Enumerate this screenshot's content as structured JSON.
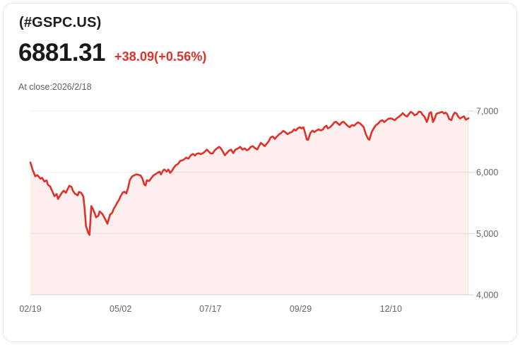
{
  "header": {
    "symbol": "(#GSPC.US)",
    "price": "6881.31",
    "change": "+38.09(+0.56%)",
    "as_of": "At close:2026/2/18"
  },
  "colors": {
    "line_red": "#e1302a",
    "area_fill": "rgba(225,48,42,0.08)",
    "change_red": "#e1302a",
    "grid": "#ececee",
    "axis": "#d2d5da",
    "tick_label": "#63666d"
  },
  "chart_data": {
    "type": "area",
    "series_name": "#GSPC.US daily close",
    "x_range": [
      "02/19",
      "02/18 (next year)"
    ],
    "ylim": [
      4000,
      7000
    ],
    "last_close": 6881.31,
    "y_ticks": [
      {
        "value": 7000,
        "label": "7,000"
      },
      {
        "value": 6000,
        "label": "6,000"
      },
      {
        "value": 5000,
        "label": "5,000"
      },
      {
        "value": 4000,
        "label": "4,000"
      }
    ],
    "x_ticks": [
      {
        "t": 0.0,
        "label": "02/19"
      },
      {
        "t": 0.206,
        "label": "05/02"
      },
      {
        "t": 0.411,
        "label": "07/17"
      },
      {
        "t": 0.617,
        "label": "09/29"
      },
      {
        "t": 0.823,
        "label": "12/10"
      }
    ],
    "legend": "none",
    "grid": "horizontal",
    "points": [
      [
        0.0,
        6160
      ],
      [
        0.005,
        6045
      ],
      [
        0.008,
        5990
      ],
      [
        0.011,
        5935
      ],
      [
        0.016,
        5955
      ],
      [
        0.023,
        5895
      ],
      [
        0.027,
        5910
      ],
      [
        0.032,
        5850
      ],
      [
        0.037,
        5868
      ],
      [
        0.04,
        5795
      ],
      [
        0.045,
        5770
      ],
      [
        0.05,
        5690
      ],
      [
        0.055,
        5610
      ],
      [
        0.06,
        5645
      ],
      [
        0.063,
        5565
      ],
      [
        0.068,
        5625
      ],
      [
        0.073,
        5675
      ],
      [
        0.076,
        5700
      ],
      [
        0.081,
        5665
      ],
      [
        0.085,
        5725
      ],
      [
        0.089,
        5780
      ],
      [
        0.094,
        5760
      ],
      [
        0.097,
        5700
      ],
      [
        0.102,
        5650
      ],
      [
        0.108,
        5622
      ],
      [
        0.111,
        5680
      ],
      [
        0.116,
        5665
      ],
      [
        0.121,
        5605
      ],
      [
        0.124,
        5390
      ],
      [
        0.127,
        5125
      ],
      [
        0.132,
        5012
      ],
      [
        0.135,
        4977
      ],
      [
        0.139,
        5448
      ],
      [
        0.142,
        5415
      ],
      [
        0.147,
        5330
      ],
      [
        0.15,
        5265
      ],
      [
        0.155,
        5290
      ],
      [
        0.158,
        5360
      ],
      [
        0.163,
        5330
      ],
      [
        0.166,
        5300
      ],
      [
        0.171,
        5230
      ],
      [
        0.176,
        5160
      ],
      [
        0.179,
        5240
      ],
      [
        0.182,
        5310
      ],
      [
        0.187,
        5340
      ],
      [
        0.19,
        5400
      ],
      [
        0.195,
        5460
      ],
      [
        0.198,
        5500
      ],
      [
        0.203,
        5560
      ],
      [
        0.206,
        5610
      ],
      [
        0.211,
        5670
      ],
      [
        0.215,
        5682
      ],
      [
        0.219,
        5655
      ],
      [
        0.223,
        5745
      ],
      [
        0.227,
        5870
      ],
      [
        0.232,
        5930
      ],
      [
        0.237,
        5950
      ],
      [
        0.242,
        5965
      ],
      [
        0.247,
        5958
      ],
      [
        0.252,
        5945
      ],
      [
        0.256,
        5895
      ],
      [
        0.26,
        5800
      ],
      [
        0.263,
        5785
      ],
      [
        0.266,
        5870
      ],
      [
        0.271,
        5855
      ],
      [
        0.276,
        5905
      ],
      [
        0.281,
        5950
      ],
      [
        0.285,
        5965
      ],
      [
        0.29,
        5990
      ],
      [
        0.295,
        6010
      ],
      [
        0.298,
        5965
      ],
      [
        0.303,
        6030
      ],
      [
        0.306,
        6045
      ],
      [
        0.311,
        6012
      ],
      [
        0.315,
        6045
      ],
      [
        0.319,
        5990
      ],
      [
        0.323,
        6022
      ],
      [
        0.327,
        6070
      ],
      [
        0.332,
        6115
      ],
      [
        0.337,
        6135
      ],
      [
        0.342,
        6185
      ],
      [
        0.347,
        6195
      ],
      [
        0.352,
        6215
      ],
      [
        0.356,
        6240
      ],
      [
        0.361,
        6222
      ],
      [
        0.366,
        6275
      ],
      [
        0.371,
        6300
      ],
      [
        0.376,
        6272
      ],
      [
        0.379,
        6300
      ],
      [
        0.384,
        6310
      ],
      [
        0.389,
        6295
      ],
      [
        0.394,
        6312
      ],
      [
        0.398,
        6335
      ],
      [
        0.403,
        6370
      ],
      [
        0.408,
        6332
      ],
      [
        0.411,
        6310
      ],
      [
        0.416,
        6306
      ],
      [
        0.421,
        6360
      ],
      [
        0.426,
        6390
      ],
      [
        0.431,
        6415
      ],
      [
        0.435,
        6390
      ],
      [
        0.44,
        6330
      ],
      [
        0.444,
        6276
      ],
      [
        0.448,
        6310
      ],
      [
        0.453,
        6350
      ],
      [
        0.458,
        6370
      ],
      [
        0.463,
        6312
      ],
      [
        0.468,
        6370
      ],
      [
        0.473,
        6385
      ],
      [
        0.479,
        6415
      ],
      [
        0.484,
        6370
      ],
      [
        0.489,
        6390
      ],
      [
        0.494,
        6360
      ],
      [
        0.498,
        6372
      ],
      [
        0.503,
        6415
      ],
      [
        0.508,
        6425
      ],
      [
        0.513,
        6392
      ],
      [
        0.518,
        6372
      ],
      [
        0.521,
        6415
      ],
      [
        0.526,
        6480
      ],
      [
        0.531,
        6452
      ],
      [
        0.535,
        6425
      ],
      [
        0.54,
        6470
      ],
      [
        0.544,
        6505
      ],
      [
        0.548,
        6565
      ],
      [
        0.553,
        6585
      ],
      [
        0.558,
        6545
      ],
      [
        0.563,
        6585
      ],
      [
        0.568,
        6620
      ],
      [
        0.573,
        6645
      ],
      [
        0.577,
        6675
      ],
      [
        0.582,
        6655
      ],
      [
        0.587,
        6622
      ],
      [
        0.592,
        6645
      ],
      [
        0.597,
        6657
      ],
      [
        0.602,
        6700
      ],
      [
        0.606,
        6680
      ],
      [
        0.61,
        6715
      ],
      [
        0.615,
        6735
      ],
      [
        0.619,
        6716
      ],
      [
        0.623,
        6735
      ],
      [
        0.626,
        6675
      ],
      [
        0.631,
        6535
      ],
      [
        0.634,
        6530
      ],
      [
        0.639,
        6640
      ],
      [
        0.644,
        6680
      ],
      [
        0.648,
        6656
      ],
      [
        0.653,
        6680
      ],
      [
        0.658,
        6700
      ],
      [
        0.663,
        6682
      ],
      [
        0.668,
        6700
      ],
      [
        0.671,
        6735
      ],
      [
        0.676,
        6760
      ],
      [
        0.679,
        6716
      ],
      [
        0.684,
        6735
      ],
      [
        0.689,
        6770
      ],
      [
        0.694,
        6815
      ],
      [
        0.698,
        6825
      ],
      [
        0.702,
        6795
      ],
      [
        0.706,
        6772
      ],
      [
        0.711,
        6815
      ],
      [
        0.715,
        6825
      ],
      [
        0.719,
        6795
      ],
      [
        0.724,
        6760
      ],
      [
        0.729,
        6736
      ],
      [
        0.734,
        6770
      ],
      [
        0.739,
        6760
      ],
      [
        0.744,
        6795
      ],
      [
        0.748,
        6815
      ],
      [
        0.753,
        6795
      ],
      [
        0.758,
        6760
      ],
      [
        0.761,
        6735
      ],
      [
        0.766,
        6620
      ],
      [
        0.771,
        6545
      ],
      [
        0.774,
        6530
      ],
      [
        0.779,
        6655
      ],
      [
        0.784,
        6720
      ],
      [
        0.789,
        6770
      ],
      [
        0.794,
        6795
      ],
      [
        0.798,
        6830
      ],
      [
        0.803,
        6850
      ],
      [
        0.808,
        6820
      ],
      [
        0.813,
        6850
      ],
      [
        0.818,
        6875
      ],
      [
        0.823,
        6880
      ],
      [
        0.827,
        6868
      ],
      [
        0.832,
        6850
      ],
      [
        0.837,
        6885
      ],
      [
        0.842,
        6910
      ],
      [
        0.847,
        6940
      ],
      [
        0.85,
        6965
      ],
      [
        0.855,
        6930
      ],
      [
        0.86,
        6910
      ],
      [
        0.863,
        6940
      ],
      [
        0.868,
        6985
      ],
      [
        0.873,
        6965
      ],
      [
        0.877,
        6930
      ],
      [
        0.882,
        6945
      ],
      [
        0.887,
        6990
      ],
      [
        0.892,
        6982
      ],
      [
        0.895,
        6940
      ],
      [
        0.9,
        6905
      ],
      [
        0.905,
        6820
      ],
      [
        0.908,
        6880
      ],
      [
        0.911,
        6965
      ],
      [
        0.915,
        6980
      ],
      [
        0.919,
        6820
      ],
      [
        0.923,
        6880
      ],
      [
        0.927,
        6955
      ],
      [
        0.931,
        6965
      ],
      [
        0.935,
        6975
      ],
      [
        0.94,
        6985
      ],
      [
        0.944,
        6958
      ],
      [
        0.948,
        6975
      ],
      [
        0.952,
        6945
      ],
      [
        0.956,
        6870
      ],
      [
        0.961,
        6850
      ],
      [
        0.965,
        6930
      ],
      [
        0.969,
        6975
      ],
      [
        0.973,
        6958
      ],
      [
        0.977,
        6905
      ],
      [
        0.981,
        6878
      ],
      [
        0.985,
        6895
      ],
      [
        0.99,
        6912
      ],
      [
        0.994,
        6858
      ],
      [
        1.0,
        6881.31
      ]
    ]
  }
}
